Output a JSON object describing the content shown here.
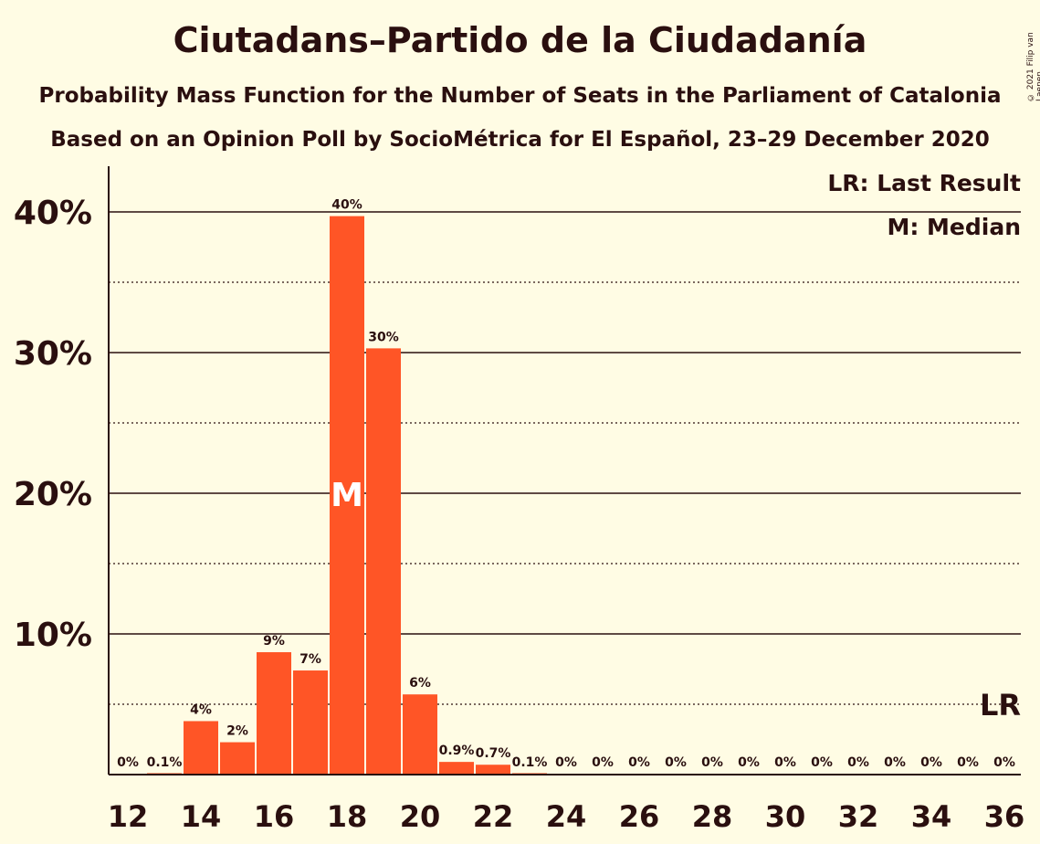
{
  "header": {
    "title": "Ciutadans–Partido de la Ciudadanía",
    "subtitle1": "Probability Mass Function for the Number of Seats in the Parliament of Catalonia",
    "subtitle2": "Based on an Opinion Poll by SocioMétrica for El Español, 23–29 December 2020",
    "copyright": "© 2021 Filip van Laenen"
  },
  "legend": {
    "last_result": "LR: Last Result",
    "median": "M: Median"
  },
  "colors": {
    "bar": "#FF5526",
    "background": "#FFFCE4",
    "text": "#2a0f0f"
  },
  "chart_data": {
    "type": "bar",
    "x": [
      12,
      13,
      14,
      15,
      16,
      17,
      18,
      19,
      20,
      21,
      22,
      23,
      24,
      25,
      26,
      27,
      28,
      29,
      30,
      31,
      32,
      33,
      34,
      35,
      36
    ],
    "values": [
      0,
      0.1,
      3.8,
      2.3,
      8.7,
      7.4,
      39.7,
      30.3,
      5.7,
      0.9,
      0.7,
      0.1,
      0,
      0,
      0,
      0,
      0,
      0,
      0,
      0,
      0,
      0,
      0,
      0,
      0
    ],
    "value_labels": [
      "0%",
      "0.1%",
      "4%",
      "2%",
      "9%",
      "7%",
      "40%",
      "30%",
      "6%",
      "0.9%",
      "0.7%",
      "0.1%",
      "0%",
      "0%",
      "0%",
      "0%",
      "0%",
      "0%",
      "0%",
      "0%",
      "0%",
      "0%",
      "0%",
      "0%",
      "0%"
    ],
    "x_tick_labels": [
      "12",
      "14",
      "16",
      "18",
      "20",
      "22",
      "24",
      "26",
      "28",
      "30",
      "32",
      "34",
      "36"
    ],
    "y_tick_labels": [
      "10%",
      "20%",
      "30%",
      "40%"
    ],
    "y_ticks": [
      10,
      20,
      30,
      40
    ],
    "ylim": [
      0,
      43.3
    ],
    "minor_gridlines": [
      5,
      15,
      25,
      35
    ],
    "median_seat": 18,
    "median_label": "M",
    "last_result_seat": 36,
    "last_result_label": "LR",
    "last_result_height": 5
  }
}
